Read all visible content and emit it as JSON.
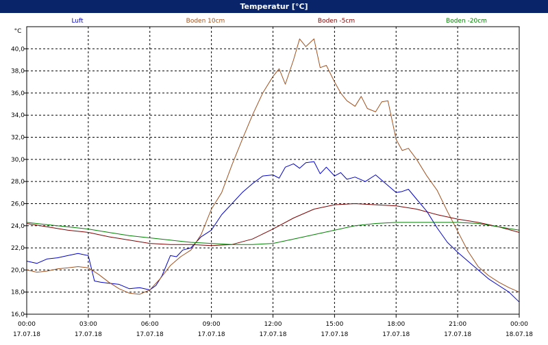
{
  "window": {
    "title": "Temperatur [°C]"
  },
  "chart_data": {
    "type": "line",
    "ylabel": "°C",
    "ylim": [
      16,
      42
    ],
    "xlim": [
      0,
      24
    ],
    "yticks": [
      16,
      18,
      20,
      22,
      24,
      26,
      28,
      30,
      32,
      34,
      36,
      38,
      40
    ],
    "ytick_labels": [
      "16,0",
      "18,0",
      "20,0",
      "22,0",
      "24,0",
      "26,0",
      "28,0",
      "30,0",
      "32,0",
      "34,0",
      "36,0",
      "38,0",
      "40,0"
    ],
    "xticks": [
      0,
      3,
      6,
      9,
      12,
      15,
      18,
      21,
      24
    ],
    "xtick_labels": [
      [
        "00:00",
        "17.07.18"
      ],
      [
        "03:00",
        "17.07.18"
      ],
      [
        "06:00",
        "17.07.18"
      ],
      [
        "09:00",
        "17.07.18"
      ],
      [
        "12:00",
        "17.07.18"
      ],
      [
        "15:00",
        "17.07.18"
      ],
      [
        "18:00",
        "17.07.18"
      ],
      [
        "21:00",
        "17.07.18"
      ],
      [
        "00:00",
        "18.07.18"
      ]
    ],
    "grid": true,
    "legend_position": "top",
    "series": [
      {
        "name": "Luft",
        "color": "#0000c8",
        "x": [
          0,
          0.5,
          1,
          1.5,
          2,
          2.5,
          3,
          3.3,
          3.6,
          4,
          4.5,
          5,
          5.5,
          6,
          6.3,
          6.6,
          7,
          7.3,
          7.6,
          8,
          8.5,
          9,
          9.5,
          10,
          10.5,
          11,
          11.5,
          12,
          12.3,
          12.6,
          13,
          13.3,
          13.6,
          14,
          14.3,
          14.6,
          15,
          15.3,
          15.6,
          16,
          16.5,
          17,
          17.5,
          18,
          18.3,
          18.6,
          19,
          19.5,
          20,
          20.5,
          21,
          21.5,
          22,
          22.5,
          23,
          23.5,
          24
        ],
        "y": [
          20.8,
          20.6,
          21.0,
          21.1,
          21.3,
          21.5,
          21.3,
          19.0,
          18.9,
          18.8,
          18.7,
          18.3,
          18.4,
          18.2,
          18.6,
          19.5,
          21.3,
          21.2,
          21.8,
          22.0,
          23.0,
          23.6,
          25.0,
          26.0,
          27.0,
          27.8,
          28.5,
          28.6,
          28.3,
          29.3,
          29.6,
          29.2,
          29.7,
          29.8,
          28.7,
          29.3,
          28.5,
          28.8,
          28.2,
          28.4,
          28.0,
          28.6,
          27.8,
          27.0,
          27.1,
          27.3,
          26.4,
          25.3,
          23.8,
          22.5,
          21.6,
          20.8,
          20.0,
          19.2,
          18.6,
          18.0,
          17.1
        ]
      },
      {
        "name": "Boden 10cm",
        "color": "#a0501e",
        "x": [
          0,
          0.5,
          1,
          1.5,
          2,
          2.5,
          3,
          3.5,
          4,
          4.5,
          5,
          5.5,
          6,
          6.5,
          7,
          7.5,
          8,
          8.5,
          9,
          9.5,
          10,
          10.5,
          11,
          11.5,
          12,
          12.3,
          12.6,
          13,
          13.3,
          13.6,
          14,
          14.3,
          14.6,
          15,
          15.3,
          15.6,
          16,
          16.3,
          16.6,
          17,
          17.3,
          17.6,
          18,
          18.3,
          18.6,
          19,
          19.5,
          20,
          20.5,
          21,
          21.5,
          22,
          22.5,
          23,
          23.5,
          24
        ],
        "y": [
          20.0,
          19.8,
          19.9,
          20.1,
          20.2,
          20.3,
          20.2,
          19.6,
          18.9,
          18.3,
          17.9,
          17.8,
          18.2,
          19.2,
          20.4,
          21.2,
          21.8,
          23.2,
          25.5,
          27.0,
          29.5,
          31.8,
          34.0,
          36.0,
          37.5,
          38.2,
          36.8,
          39.0,
          40.9,
          40.2,
          40.9,
          38.3,
          38.5,
          37.0,
          36.0,
          35.3,
          34.8,
          35.7,
          34.6,
          34.3,
          35.2,
          35.3,
          31.8,
          30.8,
          31.0,
          30.0,
          28.5,
          27.2,
          25.3,
          23.5,
          21.7,
          20.3,
          19.5,
          18.9,
          18.4,
          18.0
        ]
      },
      {
        "name": "Boden -5cm",
        "color": "#800000",
        "x": [
          0,
          1,
          2,
          3,
          4,
          5,
          6,
          7,
          8,
          9,
          10,
          11,
          12,
          13,
          14,
          15,
          16,
          17,
          18,
          19,
          20,
          21,
          22,
          23,
          24
        ],
        "y": [
          24.2,
          23.9,
          23.6,
          23.4,
          23.0,
          22.7,
          22.4,
          22.3,
          22.3,
          22.2,
          22.3,
          22.8,
          23.7,
          24.7,
          25.5,
          25.9,
          26.0,
          25.9,
          25.8,
          25.5,
          25.0,
          24.6,
          24.3,
          23.9,
          23.4
        ]
      },
      {
        "name": "Boden -20cm",
        "color": "#008000",
        "x": [
          0,
          1,
          2,
          3,
          4,
          5,
          6,
          7,
          8,
          9,
          10,
          11,
          12,
          13,
          14,
          15,
          16,
          17,
          18,
          19,
          20,
          21,
          22,
          23,
          24
        ],
        "y": [
          24.3,
          24.1,
          23.9,
          23.7,
          23.4,
          23.1,
          22.9,
          22.7,
          22.5,
          22.4,
          22.3,
          22.3,
          22.4,
          22.8,
          23.2,
          23.6,
          24.0,
          24.2,
          24.3,
          24.3,
          24.3,
          24.3,
          24.2,
          23.9,
          23.6
        ]
      }
    ]
  }
}
